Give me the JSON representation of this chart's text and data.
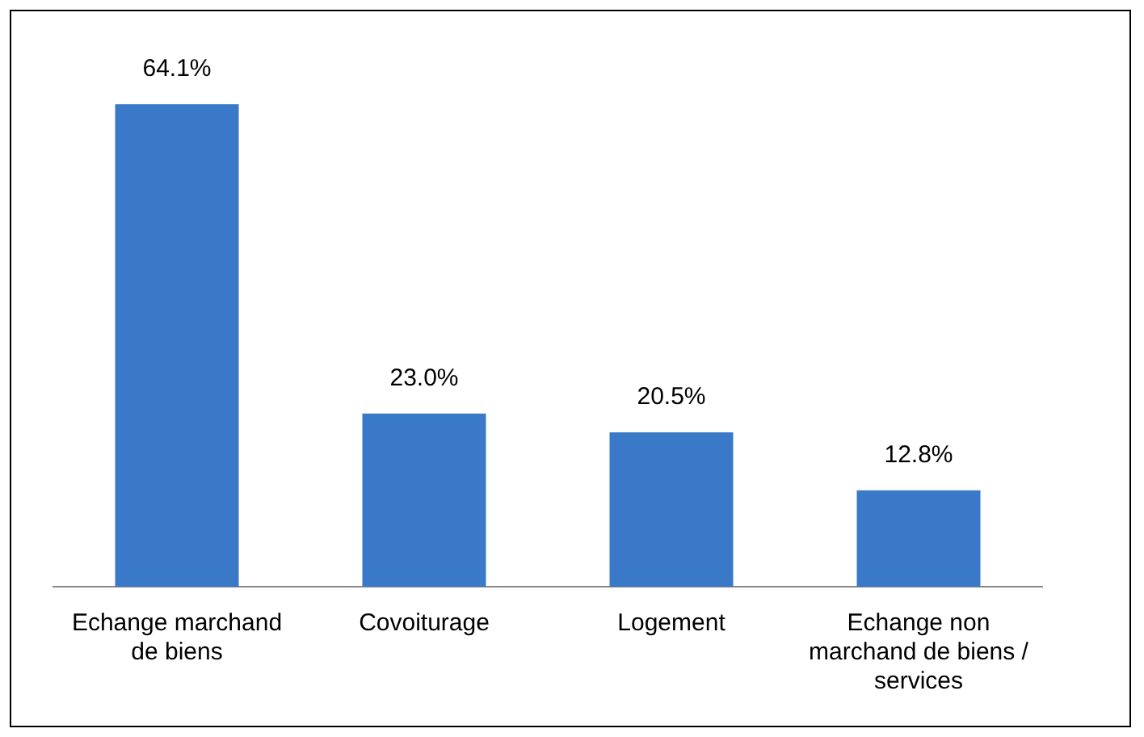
{
  "chart_data": {
    "type": "bar",
    "categories": [
      "Echange marchand\nde biens",
      "Covoiturage",
      "Logement",
      "Echange non\nmarchand de biens /\nservices"
    ],
    "values": [
      64.1,
      23.0,
      20.5,
      12.8
    ],
    "value_labels": [
      "64.1%",
      "23.0%",
      "20.5%",
      "12.8%"
    ],
    "color": "#3a78c8",
    "tick_labels": "x",
    "grid": false,
    "legend": false
  }
}
